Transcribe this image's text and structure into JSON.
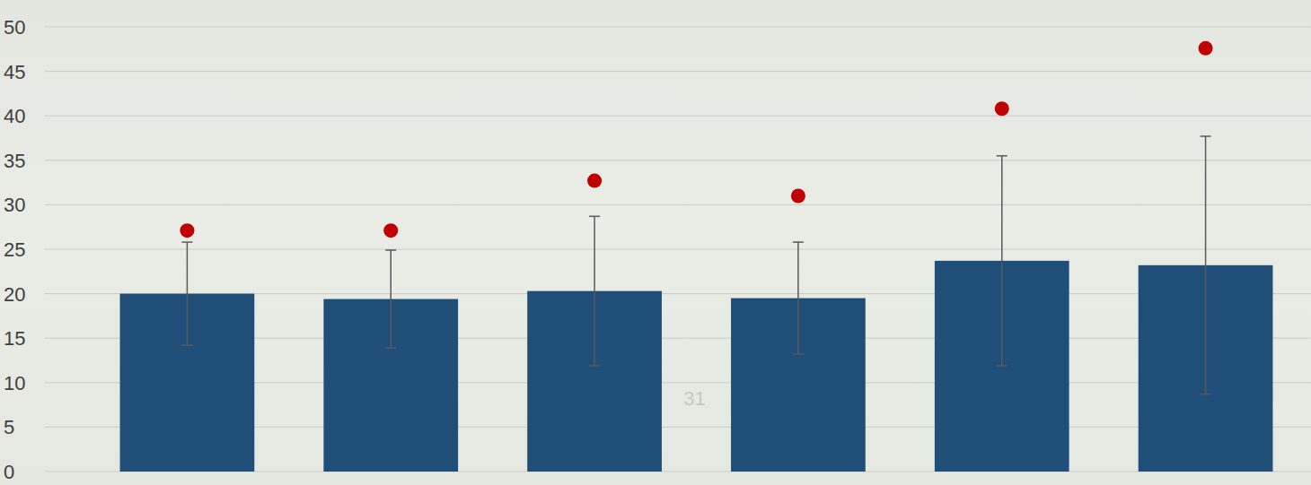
{
  "chart_data": {
    "type": "bar",
    "categories": [
      null,
      null,
      null,
      null,
      null,
      null
    ],
    "series": [
      {
        "type": "bar",
        "color": "#1f4e79",
        "values": [
          20,
          19.4,
          20.3,
          19.5,
          23.7,
          23.2
        ],
        "errors": [
          5.8,
          5.5,
          8.4,
          6.3,
          11.8,
          14.5
        ]
      },
      {
        "type": "scatter",
        "color": "#c00000",
        "marker": "circle",
        "values": [
          27.1,
          27.1,
          32.7,
          31,
          40.8,
          47.6
        ]
      }
    ],
    "ylim": [
      0,
      50
    ],
    "yticks": [
      0,
      5,
      10,
      15,
      20,
      25,
      30,
      35,
      40,
      45,
      50
    ],
    "grid": true,
    "annotations": [
      "31"
    ]
  }
}
